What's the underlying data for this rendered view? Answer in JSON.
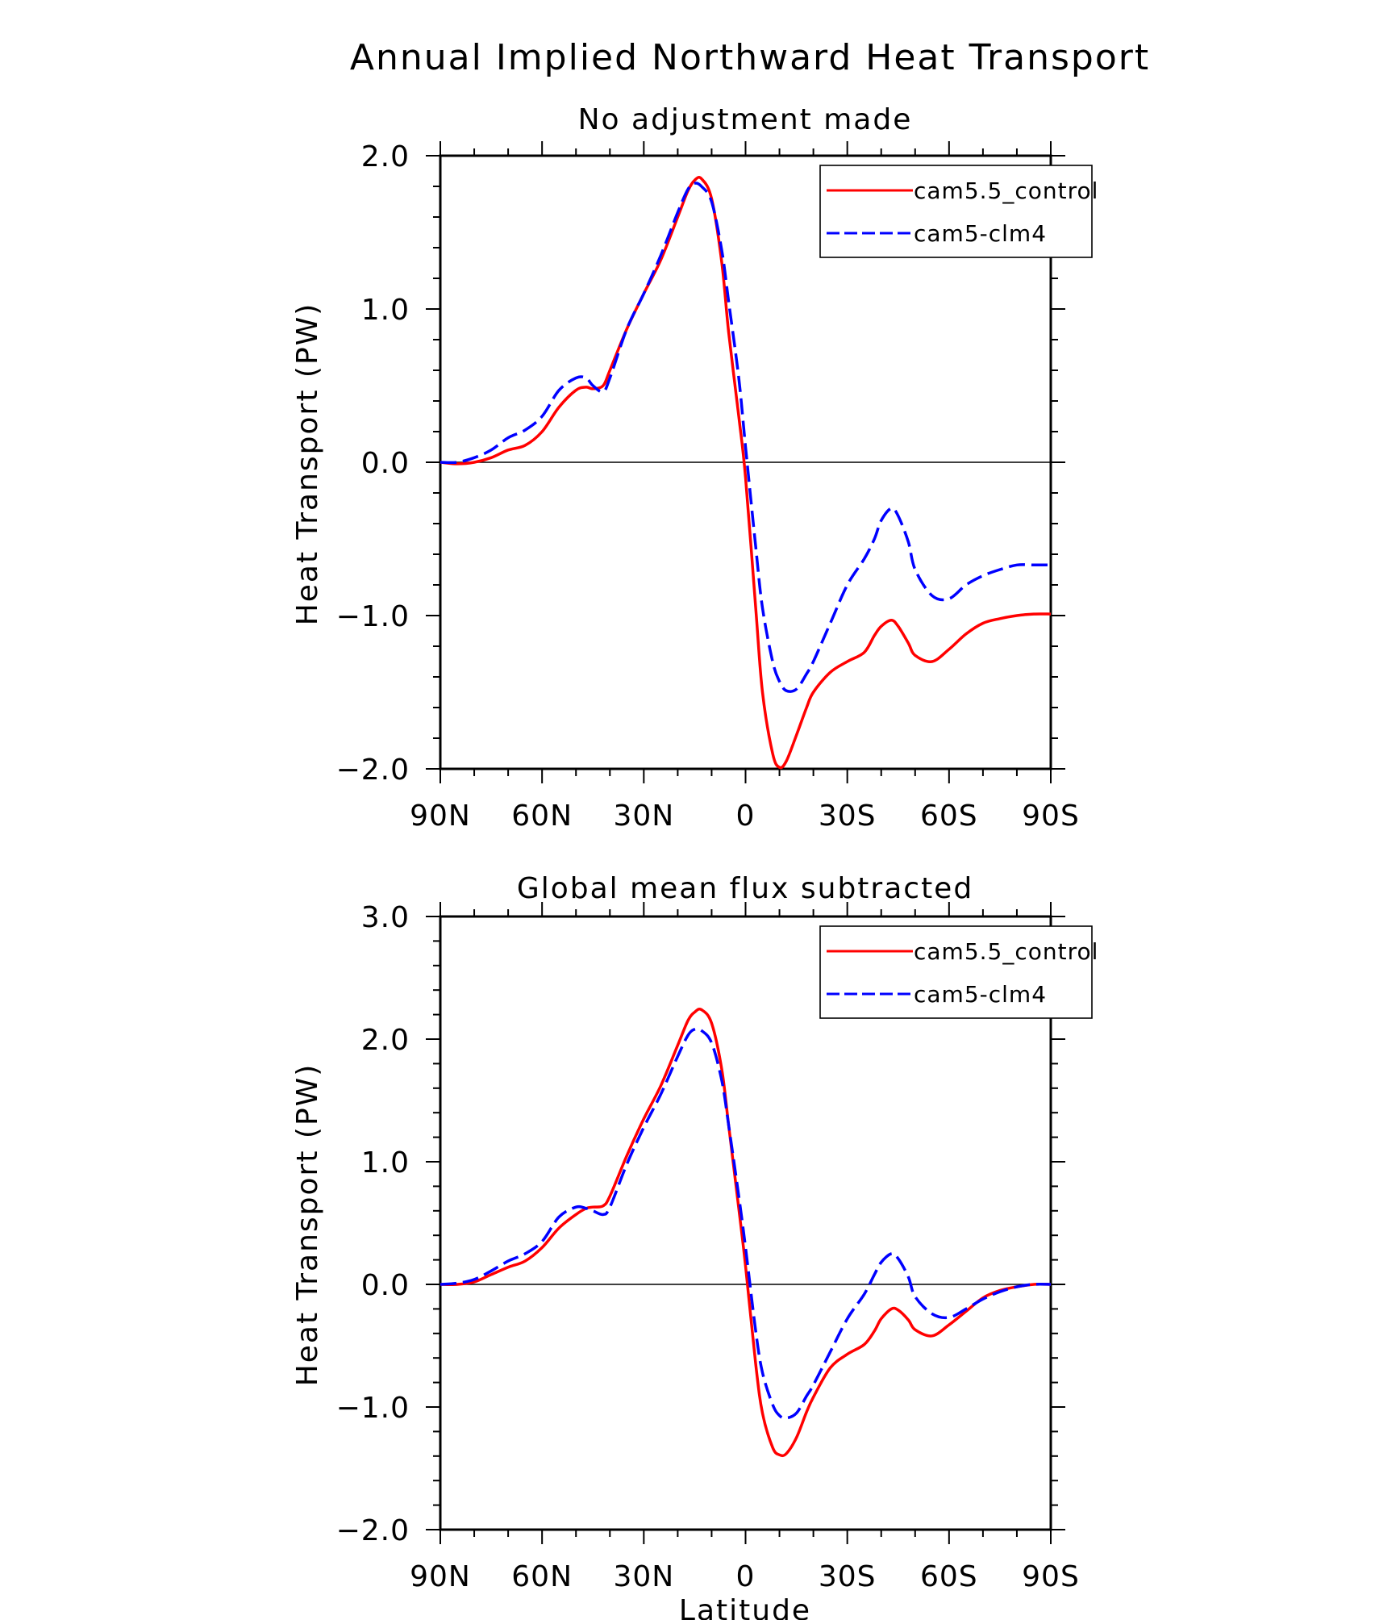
{
  "figure": {
    "title": "Annual Implied Northward Heat Transport",
    "xlabel": "Latitude"
  },
  "colors": {
    "cam5.5_control": "#ff0000",
    "cam5-clm4": "#0000ff"
  },
  "chart_data": [
    {
      "type": "line",
      "title": "No adjustment made",
      "xlabel": "Latitude",
      "ylabel": "Heat Transport (PW)",
      "xlim": [
        90,
        -90
      ],
      "ylim": [
        -2.0,
        2.0
      ],
      "x_ticks": [
        90,
        60,
        30,
        0,
        -30,
        -60,
        -90
      ],
      "x_tick_labels": [
        "90N",
        "60N",
        "30N",
        "0",
        "30S",
        "60S",
        "90S"
      ],
      "y_ticks": [
        2.0,
        1.0,
        0.0,
        -1.0,
        -2.0
      ],
      "y_tick_labels": [
        "2.0",
        "1.0",
        "0.0",
        "−1.0",
        "−2.0"
      ],
      "legend": "top-right",
      "zero_line": true,
      "series": [
        {
          "name": "cam5.5_control",
          "style": "solid",
          "x": [
            90,
            85,
            80,
            75,
            70,
            65,
            60,
            55,
            50,
            47,
            45,
            42,
            40,
            35,
            30,
            25,
            20,
            17,
            15,
            13,
            10,
            7,
            5,
            2,
            0,
            -3,
            -5,
            -8,
            -10,
            -12,
            -15,
            -18,
            -20,
            -25,
            -30,
            -35,
            -38,
            -40,
            -43,
            -45,
            -48,
            -50,
            -55,
            -60,
            -65,
            -70,
            -75,
            -80,
            -85,
            -90
          ],
          "values": [
            0.0,
            -0.01,
            0.0,
            0.03,
            0.08,
            0.11,
            0.2,
            0.36,
            0.47,
            0.49,
            0.48,
            0.5,
            0.6,
            0.87,
            1.1,
            1.32,
            1.6,
            1.77,
            1.84,
            1.85,
            1.72,
            1.3,
            0.85,
            0.3,
            -0.1,
            -0.95,
            -1.5,
            -1.9,
            -1.99,
            -1.95,
            -1.78,
            -1.6,
            -1.5,
            -1.37,
            -1.3,
            -1.24,
            -1.13,
            -1.07,
            -1.03,
            -1.07,
            -1.18,
            -1.26,
            -1.3,
            -1.22,
            -1.12,
            -1.05,
            -1.02,
            -1.0,
            -0.99,
            -0.99
          ]
        },
        {
          "name": "cam5-clm4",
          "style": "dashed",
          "x": [
            90,
            85,
            80,
            75,
            70,
            65,
            60,
            55,
            50,
            47,
            45,
            42,
            40,
            35,
            30,
            25,
            20,
            17,
            15,
            13,
            10,
            7,
            5,
            2,
            0,
            -3,
            -5,
            -8,
            -10,
            -12,
            -15,
            -18,
            -20,
            -25,
            -30,
            -35,
            -38,
            -40,
            -43,
            -45,
            -48,
            -50,
            -55,
            -60,
            -65,
            -70,
            -75,
            -80,
            -85,
            -90
          ],
          "values": [
            0.0,
            0.0,
            0.03,
            0.08,
            0.16,
            0.21,
            0.3,
            0.47,
            0.55,
            0.55,
            0.5,
            0.46,
            0.55,
            0.87,
            1.1,
            1.35,
            1.63,
            1.78,
            1.82,
            1.8,
            1.7,
            1.38,
            1.05,
            0.55,
            0.1,
            -0.55,
            -0.95,
            -1.3,
            -1.43,
            -1.49,
            -1.48,
            -1.38,
            -1.3,
            -1.05,
            -0.8,
            -0.63,
            -0.5,
            -0.38,
            -0.3,
            -0.35,
            -0.52,
            -0.7,
            -0.87,
            -0.89,
            -0.8,
            -0.74,
            -0.7,
            -0.67,
            -0.67,
            -0.67
          ]
        }
      ]
    },
    {
      "type": "line",
      "title": "Global mean flux subtracted",
      "xlabel": "Latitude",
      "ylabel": "Heat Transport (PW)",
      "xlim": [
        90,
        -90
      ],
      "ylim": [
        -2.0,
        3.0
      ],
      "x_ticks": [
        90,
        60,
        30,
        0,
        -30,
        -60,
        -90
      ],
      "x_tick_labels": [
        "90N",
        "60N",
        "30N",
        "0",
        "30S",
        "60S",
        "90S"
      ],
      "y_ticks": [
        3.0,
        2.0,
        1.0,
        0.0,
        -1.0,
        -2.0
      ],
      "y_tick_labels": [
        "3.0",
        "2.0",
        "1.0",
        "0.0",
        "−1.0",
        "−2.0"
      ],
      "legend": "top-right",
      "zero_line": true,
      "series": [
        {
          "name": "cam5.5_control",
          "style": "solid",
          "x": [
            90,
            85,
            80,
            75,
            70,
            65,
            60,
            55,
            50,
            47,
            45,
            42,
            40,
            35,
            30,
            25,
            20,
            17,
            15,
            13,
            10,
            7,
            5,
            2,
            0,
            -3,
            -5,
            -8,
            -10,
            -12,
            -15,
            -18,
            -20,
            -25,
            -30,
            -35,
            -38,
            -40,
            -43,
            -45,
            -48,
            -50,
            -55,
            -60,
            -65,
            -70,
            -75,
            -80,
            -85,
            -90
          ],
          "values": [
            0.0,
            0.0,
            0.02,
            0.08,
            0.14,
            0.19,
            0.3,
            0.46,
            0.57,
            0.62,
            0.63,
            0.64,
            0.72,
            1.05,
            1.35,
            1.62,
            1.95,
            2.15,
            2.22,
            2.24,
            2.13,
            1.75,
            1.3,
            0.62,
            0.15,
            -0.65,
            -1.05,
            -1.33,
            -1.39,
            -1.38,
            -1.25,
            -1.04,
            -0.92,
            -0.68,
            -0.57,
            -0.49,
            -0.38,
            -0.28,
            -0.2,
            -0.21,
            -0.29,
            -0.37,
            -0.42,
            -0.33,
            -0.22,
            -0.11,
            -0.05,
            -0.02,
            0.0,
            0.0
          ]
        },
        {
          "name": "cam5-clm4",
          "style": "dashed",
          "x": [
            90,
            85,
            80,
            75,
            70,
            65,
            60,
            55,
            50,
            47,
            45,
            42,
            40,
            35,
            30,
            25,
            20,
            17,
            15,
            13,
            10,
            7,
            5,
            2,
            0,
            -3,
            -5,
            -8,
            -10,
            -12,
            -15,
            -18,
            -20,
            -25,
            -30,
            -35,
            -38,
            -40,
            -43,
            -45,
            -48,
            -50,
            -55,
            -60,
            -65,
            -70,
            -75,
            -80,
            -85,
            -90
          ],
          "values": [
            0.0,
            0.01,
            0.04,
            0.11,
            0.19,
            0.25,
            0.35,
            0.55,
            0.63,
            0.62,
            0.6,
            0.57,
            0.63,
            0.98,
            1.28,
            1.55,
            1.86,
            2.03,
            2.08,
            2.07,
            1.97,
            1.66,
            1.3,
            0.72,
            0.3,
            -0.38,
            -0.72,
            -0.98,
            -1.07,
            -1.09,
            -1.05,
            -0.91,
            -0.82,
            -0.55,
            -0.28,
            -0.08,
            0.08,
            0.18,
            0.25,
            0.21,
            0.06,
            -0.1,
            -0.24,
            -0.27,
            -0.2,
            -0.12,
            -0.06,
            -0.02,
            0.0,
            0.0
          ]
        }
      ]
    }
  ]
}
